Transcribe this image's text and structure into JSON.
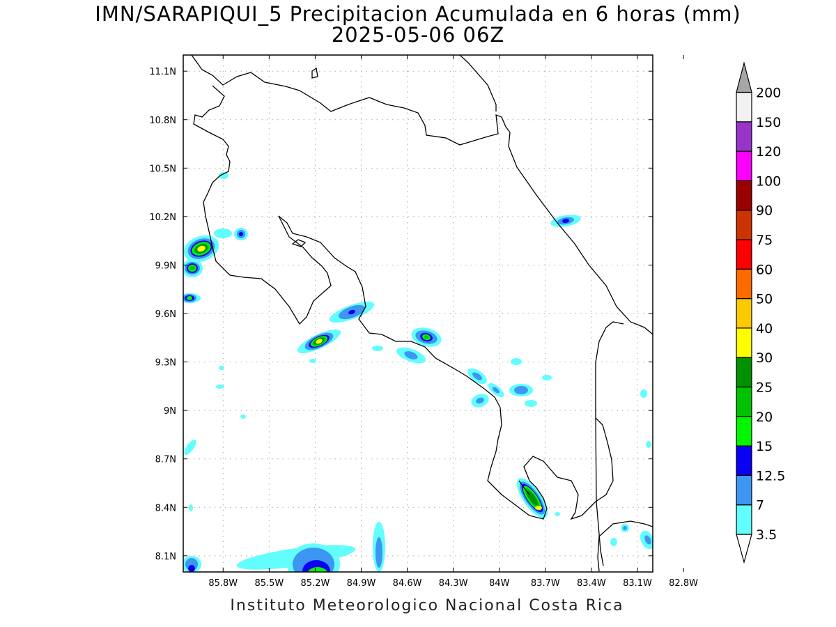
{
  "header": {
    "title": "IMN/SARAPIQUI_5 Precipitacion Acumulada en 6 horas (mm)",
    "subtitle": "2025-05-06 06Z"
  },
  "footer": {
    "credit": "Instituto Meteorologico Nacional Costa Rica"
  },
  "map": {
    "lon_labels": [
      "85.8W",
      "85.5W",
      "85.2W",
      "84.9W",
      "84.6W",
      "84.3W",
      "84W",
      "83.7W",
      "83.4W",
      "83.1W",
      "82.8W"
    ],
    "lon_values": [
      -85.8,
      -85.5,
      -85.2,
      -84.9,
      -84.6,
      -84.3,
      -84.0,
      -83.7,
      -83.4,
      -83.1,
      -82.8
    ],
    "lat_labels": [
      "11.1N",
      "10.8N",
      "10.5N",
      "10.2N",
      "9.9N",
      "9.6N",
      "9.3N",
      "9N",
      "8.7N",
      "8.4N",
      "8.1N"
    ],
    "lat_values": [
      11.1,
      10.8,
      10.5,
      10.2,
      9.9,
      9.6,
      9.3,
      9.0,
      8.7,
      8.4,
      8.1
    ],
    "lon_range": [
      -86.06,
      -83.0
    ],
    "lat_range": [
      8.0,
      11.2
    ],
    "grid": true
  },
  "colorbar": {
    "labels": [
      "3.5",
      "7",
      "12.5",
      "15",
      "20",
      "25",
      "30",
      "40",
      "50",
      "60",
      "75",
      "90",
      "100",
      "120",
      "150",
      "200"
    ],
    "colors": [
      "#62fdfd",
      "#3d96f2",
      "#0a00f3",
      "#03f500",
      "#00c200",
      "#009000",
      "#fefe00",
      "#fdca00",
      "#fd6a00",
      "#fd0000",
      "#cc3300",
      "#9b0000",
      "#fd00fd",
      "#9933cc",
      "#f2f2f2",
      "#a6a6a6"
    ]
  },
  "precip_cells": [
    {
      "lon": -85.98,
      "lat": 10.08,
      "peak": "30"
    },
    {
      "lon": -86.03,
      "lat": 9.93,
      "peak": "25"
    },
    {
      "lon": -86.03,
      "lat": 9.75,
      "peak": "20"
    },
    {
      "lon": -85.68,
      "lat": 10.18,
      "peak": "12.5"
    },
    {
      "lon": -84.98,
      "lat": 9.5,
      "peak": "30"
    },
    {
      "lon": -84.86,
      "lat": 9.66,
      "peak": "12.5"
    },
    {
      "lon": -84.23,
      "lat": 9.48,
      "peak": "20"
    },
    {
      "lon": -83.45,
      "lat": 8.48,
      "peak": "30"
    },
    {
      "lon": -84.95,
      "lat": 8.07,
      "peak": "20"
    },
    {
      "lon": -83.23,
      "lat": 10.22,
      "peak": "12.5"
    },
    {
      "lon": -83.52,
      "lat": 9.15,
      "peak": "7"
    },
    {
      "lon": -84.58,
      "lat": 8.1,
      "peak": "7"
    }
  ]
}
